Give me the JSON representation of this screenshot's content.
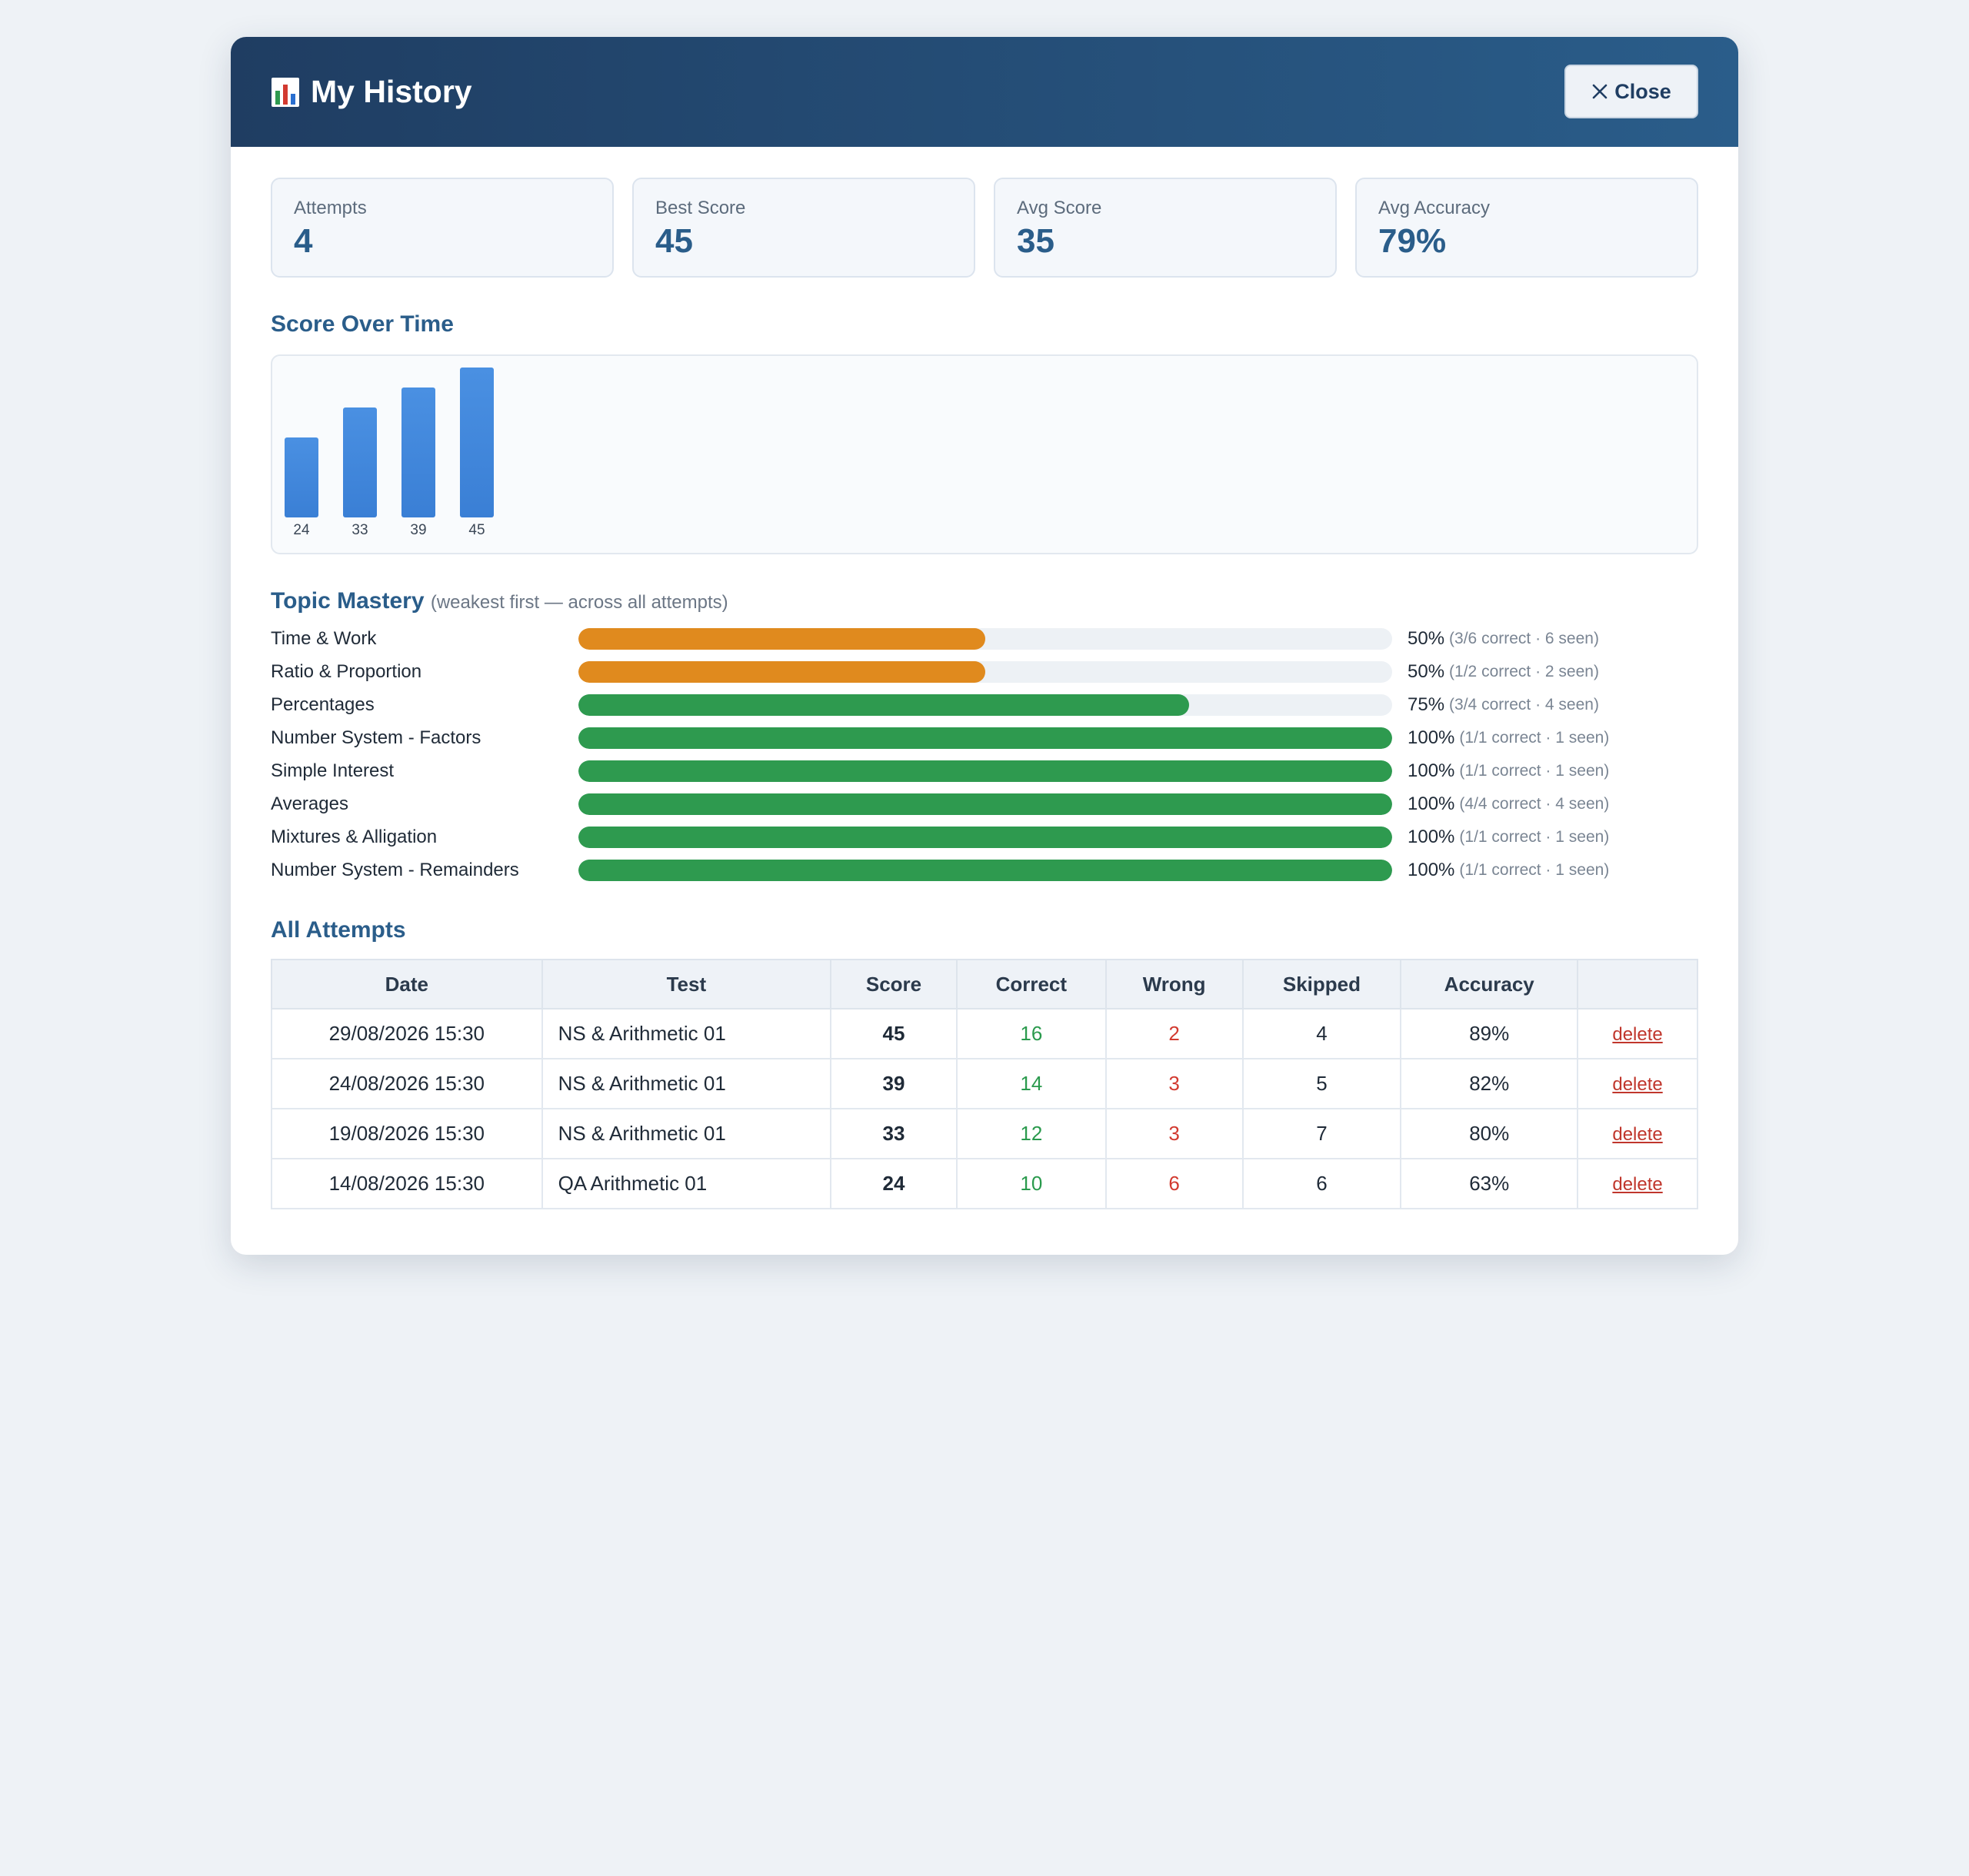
{
  "header": {
    "title": "My History",
    "close_label": "Close"
  },
  "stats": [
    {
      "label": "Attempts",
      "value": "4"
    },
    {
      "label": "Best Score",
      "value": "45"
    },
    {
      "label": "Avg Score",
      "value": "35"
    },
    {
      "label": "Avg Accuracy",
      "value": "79%"
    }
  ],
  "score_section": {
    "title": "Score Over Time"
  },
  "chart_data": {
    "type": "bar",
    "title": "Score Over Time",
    "categories": [
      "24",
      "33",
      "39",
      "45"
    ],
    "values": [
      24,
      33,
      39,
      45
    ],
    "ylim": [
      0,
      45
    ],
    "bar_color": "#3a7fd5",
    "grid": false
  },
  "topic_section": {
    "title": "Topic Mastery",
    "note": "(weakest first — across all attempts)",
    "colors": {
      "weak": "#e08a1e",
      "strong": "#2e9a4f"
    },
    "topics": [
      {
        "name": "Time & Work",
        "percent": 50,
        "pct_label": "50%",
        "detail": "(3/6 correct · 6 seen)"
      },
      {
        "name": "Ratio & Proportion",
        "percent": 50,
        "pct_label": "50%",
        "detail": "(1/2 correct · 2 seen)"
      },
      {
        "name": "Percentages",
        "percent": 75,
        "pct_label": "75%",
        "detail": "(3/4 correct · 4 seen)"
      },
      {
        "name": "Number System - Factors",
        "percent": 100,
        "pct_label": "100%",
        "detail": "(1/1 correct · 1 seen)"
      },
      {
        "name": "Simple Interest",
        "percent": 100,
        "pct_label": "100%",
        "detail": "(1/1 correct · 1 seen)"
      },
      {
        "name": "Averages",
        "percent": 100,
        "pct_label": "100%",
        "detail": "(4/4 correct · 4 seen)"
      },
      {
        "name": "Mixtures & Alligation",
        "percent": 100,
        "pct_label": "100%",
        "detail": "(1/1 correct · 1 seen)"
      },
      {
        "name": "Number System - Remainders",
        "percent": 100,
        "pct_label": "100%",
        "detail": "(1/1 correct · 1 seen)"
      }
    ]
  },
  "attempts_section": {
    "title": "All Attempts",
    "columns": [
      "Date",
      "Test",
      "Score",
      "Correct",
      "Wrong",
      "Skipped",
      "Accuracy",
      ""
    ],
    "delete_label": "delete",
    "rows": [
      {
        "date": "29/08/2026 15:30",
        "test": "NS & Arithmetic 01",
        "score": "45",
        "correct": "16",
        "wrong": "2",
        "skipped": "4",
        "accuracy": "89%"
      },
      {
        "date": "24/08/2026 15:30",
        "test": "NS & Arithmetic 01",
        "score": "39",
        "correct": "14",
        "wrong": "3",
        "skipped": "5",
        "accuracy": "82%"
      },
      {
        "date": "19/08/2026 15:30",
        "test": "NS & Arithmetic 01",
        "score": "33",
        "correct": "12",
        "wrong": "3",
        "skipped": "7",
        "accuracy": "80%"
      },
      {
        "date": "14/08/2026 15:30",
        "test": "QA Arithmetic 01",
        "score": "24",
        "correct": "10",
        "wrong": "6",
        "skipped": "6",
        "accuracy": "63%"
      }
    ]
  }
}
